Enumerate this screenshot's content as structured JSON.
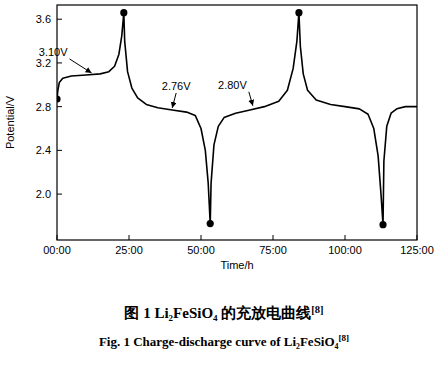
{
  "chart_data": {
    "type": "line",
    "title": "图 1   Li₂FeSiO₄ 的充放电曲线",
    "title_ref": "[8]",
    "subtitle": "Fig. 1   Charge-discharge curve of Li₂FeSiO₄",
    "subtitle_ref": "[8]",
    "x_label": "Time/h",
    "y_label": "Potential/V",
    "xlim": [
      0,
      125
    ],
    "ylim": [
      1.58,
      3.73
    ],
    "xticks": [
      {
        "value": 0,
        "label": "00:00"
      },
      {
        "value": 25,
        "label": "25:00"
      },
      {
        "value": 50,
        "label": "50:00"
      },
      {
        "value": 75,
        "label": "75:00"
      },
      {
        "value": 100,
        "label": "100:00"
      },
      {
        "value": 125,
        "label": "125:00"
      }
    ],
    "yticks": [
      {
        "value": 2,
        "label": "2.0"
      },
      2.4,
      2.8,
      3.2,
      3.6
    ],
    "grid": false,
    "series": [
      {
        "color": "#000000",
        "line_style": "solid",
        "marker": "none",
        "x": [
          0,
          0.3,
          0.8,
          2,
          5,
          10,
          15,
          18,
          20,
          21.5,
          22.5,
          23.2,
          23.5,
          24.5,
          26,
          28,
          31,
          35,
          40,
          45,
          48,
          50,
          51.5,
          52.5,
          53.2,
          53.5,
          54.5,
          56,
          58,
          62,
          67,
          72,
          77,
          80,
          82,
          83.3,
          84,
          84.5,
          85.5,
          87,
          90,
          95,
          100,
          105,
          108,
          110,
          111.5,
          112.5,
          113.2,
          113.5,
          114.5,
          116,
          118,
          121,
          125
        ],
        "values": [
          2.87,
          2.95,
          3.02,
          3.06,
          3.08,
          3.09,
          3.1,
          3.12,
          3.17,
          3.28,
          3.45,
          3.66,
          3.4,
          3.12,
          2.97,
          2.88,
          2.82,
          2.79,
          2.77,
          2.75,
          2.72,
          2.6,
          2.4,
          2.1,
          1.73,
          2.1,
          2.45,
          2.62,
          2.7,
          2.74,
          2.77,
          2.8,
          2.85,
          2.95,
          3.15,
          3.4,
          3.66,
          3.35,
          3.1,
          2.95,
          2.86,
          2.82,
          2.8,
          2.78,
          2.73,
          2.6,
          2.35,
          2.0,
          1.72,
          2.3,
          2.62,
          2.74,
          2.78,
          2.8,
          2.8
        ]
      },
      {
        "color": "#000000",
        "line_style": "none",
        "marker": "circle",
        "x": [
          0,
          23.2,
          53.2,
          84,
          113.2
        ],
        "values": [
          2.87,
          3.66,
          1.73,
          3.66,
          1.72
        ]
      }
    ],
    "annotations": [
      {
        "text": "3.10V",
        "x": 12,
        "y": 3.09
      },
      {
        "text": "2.76V",
        "x": 40,
        "y": 2.77
      },
      {
        "text": "2.80V",
        "x": 68,
        "y": 2.79
      }
    ]
  }
}
